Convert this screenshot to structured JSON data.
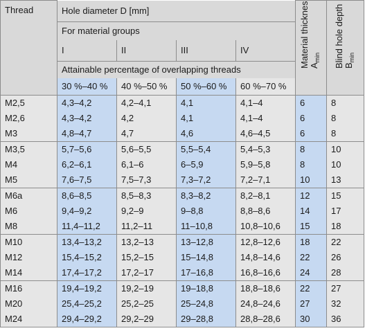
{
  "headers": {
    "thread": "Thread",
    "hole_diameter": "Hole diameter D [mm]",
    "material_groups": "For material groups",
    "groups": [
      "I",
      "II",
      "III",
      "IV"
    ],
    "attainable": "Attainable percentage of overlapping threads",
    "percentages": [
      "30 %–40 %",
      "40 %–50 %",
      "50 %–60 %",
      "60 %–70 %"
    ],
    "material_thickness": "Material thickness",
    "material_thickness_symbol": "A",
    "material_thickness_sub": "min",
    "blind_hole_depth": "Blind hole depth",
    "blind_hole_symbol": "B",
    "blind_hole_sub": "min"
  },
  "groups": [
    {
      "rows": [
        {
          "thread": "M2,5",
          "d1": "4,3–4,2",
          "d2": "4,2–4,1",
          "d3": "4,1",
          "d4": "4,1–4",
          "a": "6",
          "b": "8"
        },
        {
          "thread": "M2,6",
          "d1": "4,3–4,2",
          "d2": "4,2",
          "d3": "4,1",
          "d4": "4,1–4",
          "a": "6",
          "b": "8"
        },
        {
          "thread": "M3",
          "d1": "4,8–4,7",
          "d2": "4,7",
          "d3": "4,6",
          "d4": "4,6–4,5",
          "a": "6",
          "b": "8"
        }
      ]
    },
    {
      "rows": [
        {
          "thread": "M3,5",
          "d1": "5,7–5,6",
          "d2": "5,6–5,5",
          "d3": "5,5–5,4",
          "d4": "5,4–5,3",
          "a": "8",
          "b": "10"
        },
        {
          "thread": "M4",
          "d1": "6,2–6,1",
          "d2": "6,1–6",
          "d3": "6–5,9",
          "d4": "5,9–5,8",
          "a": "8",
          "b": "10"
        },
        {
          "thread": "M5",
          "d1": "7,6–7,5",
          "d2": "7,5–7,3",
          "d3": "7,3–7,2",
          "d4": "7,2–7,1",
          "a": "10",
          "b": "13"
        }
      ]
    },
    {
      "rows": [
        {
          "thread": "M6a",
          "d1": "8,6–8,5",
          "d2": "8,5–8,3",
          "d3": "8,3–8,2",
          "d4": "8,2–8,1",
          "a": "12",
          "b": "15"
        },
        {
          "thread": "M6",
          "d1": "9,4–9,2",
          "d2": "9,2–9",
          "d3": "9–8,8",
          "d4": "8,8–8,6",
          "a": "14",
          "b": "17"
        },
        {
          "thread": "M8",
          "d1": "11,4–11,2",
          "d2": "11,2–11",
          "d3": "11–10,8",
          "d4": "10,8–10,6",
          "a": "15",
          "b": "18"
        }
      ]
    },
    {
      "rows": [
        {
          "thread": "M10",
          "d1": "13,4–13,2",
          "d2": "13,2–13",
          "d3": "13–12,8",
          "d4": "12,8–12,6",
          "a": "18",
          "b": "22"
        },
        {
          "thread": "M12",
          "d1": "15,4–15,2",
          "d2": "15,2–15",
          "d3": "15–14,8",
          "d4": "14,8–14,6",
          "a": "22",
          "b": "26"
        },
        {
          "thread": "M14",
          "d1": "17,4–17,2",
          "d2": "17,2–17",
          "d3": "17–16,8",
          "d4": "16,8–16,6",
          "a": "24",
          "b": "28"
        }
      ]
    },
    {
      "rows": [
        {
          "thread": "M16",
          "d1": "19,4–19,2",
          "d2": "19,2–19",
          "d3": "19–18,8",
          "d4": "18,8–18,6",
          "a": "22",
          "b": "27"
        },
        {
          "thread": "M20",
          "d1": "25,4–25,2",
          "d2": "25,2–25",
          "d3": "25–24,8",
          "d4": "24,8–24,6",
          "a": "27",
          "b": "32"
        },
        {
          "thread": "M24",
          "d1": "29,4–29,2",
          "d2": "29,2–29",
          "d3": "29–28,8",
          "d4": "28,8–28,6",
          "a": "30",
          "b": "36"
        }
      ]
    }
  ]
}
